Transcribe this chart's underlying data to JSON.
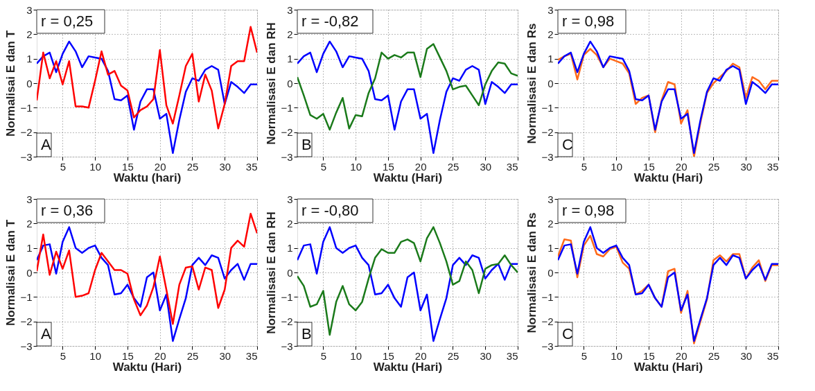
{
  "chart_data": [
    {
      "type": "line",
      "xlabel": "Waktu (hari)",
      "ylabel": "Normalisai E dan T",
      "annotations": [
        "r = 0,25",
        "A"
      ],
      "xlim": [
        1,
        35
      ],
      "xticks": [
        5,
        10,
        15,
        20,
        25,
        30,
        35
      ],
      "ylim": [
        -3,
        3
      ],
      "yticks": [
        -3,
        -2,
        -1,
        0,
        1,
        2,
        3
      ],
      "grid": true,
      "line_style": "solid",
      "x": [
        1,
        2,
        3,
        4,
        5,
        6,
        7,
        8,
        9,
        10,
        11,
        12,
        13,
        14,
        15,
        16,
        17,
        18,
        19,
        20,
        21,
        22,
        23,
        24,
        25,
        26,
        27,
        28,
        29,
        30,
        31,
        32,
        33,
        34,
        35
      ],
      "series": [
        {
          "color": "#0000ff",
          "values": [
            0.8,
            1.1,
            1.25,
            0.45,
            1.2,
            1.7,
            1.3,
            0.65,
            1.1,
            1.05,
            1.0,
            0.5,
            -0.65,
            -0.7,
            -0.5,
            -1.9,
            -0.75,
            -0.25,
            -0.25,
            -1.45,
            -1.25,
            -2.85,
            -1.5,
            -0.35,
            0.2,
            0.1,
            0.55,
            0.7,
            0.55,
            -0.85,
            0.05,
            -0.15,
            -0.4,
            -0.05,
            -0.05
          ]
        },
        {
          "color": "#ff0000",
          "values": [
            -0.7,
            1.25,
            0.2,
            0.9,
            -0.05,
            0.9,
            -0.95,
            -0.95,
            -1.0,
            0.1,
            1.3,
            0.35,
            0.5,
            -0.1,
            -0.3,
            -1.4,
            -1.1,
            -0.95,
            -0.65,
            1.35,
            -0.9,
            -1.65,
            -0.5,
            0.7,
            1.2,
            -0.75,
            0.35,
            -0.3,
            -1.85,
            -0.85,
            0.7,
            0.9,
            0.9,
            2.3,
            1.25
          ]
        }
      ]
    },
    {
      "type": "line",
      "xlabel": "Waktu (Hari)",
      "ylabel": "Normalisasi E dan RH",
      "annotations": [
        "r = -0,82",
        "B"
      ],
      "xlim": [
        1,
        35
      ],
      "xticks": [
        5,
        10,
        15,
        20,
        25,
        30,
        35
      ],
      "ylim": [
        -3,
        3
      ],
      "yticks": [
        -3,
        -2,
        -1,
        0,
        1,
        2,
        3
      ],
      "grid": true,
      "line_style": "solid",
      "x": [
        1,
        2,
        3,
        4,
        5,
        6,
        7,
        8,
        9,
        10,
        11,
        12,
        13,
        14,
        15,
        16,
        17,
        18,
        19,
        20,
        21,
        22,
        23,
        24,
        25,
        26,
        27,
        28,
        29,
        30,
        31,
        32,
        33,
        34,
        35
      ],
      "series": [
        {
          "color": "#0000ff",
          "values": [
            0.8,
            1.1,
            1.25,
            0.45,
            1.2,
            1.7,
            1.3,
            0.65,
            1.1,
            1.05,
            1.0,
            0.5,
            -0.65,
            -0.7,
            -0.5,
            -1.9,
            -0.75,
            -0.25,
            -0.25,
            -1.45,
            -1.25,
            -2.85,
            -1.5,
            -0.35,
            0.2,
            0.1,
            0.55,
            0.7,
            0.55,
            -0.85,
            0.05,
            -0.15,
            -0.4,
            -0.05,
            -0.05
          ]
        },
        {
          "color": "#1a7a1a",
          "values": [
            0.25,
            -0.5,
            -1.3,
            -1.45,
            -1.25,
            -1.9,
            -1.2,
            -0.6,
            -1.85,
            -1.3,
            -1.35,
            -0.4,
            0.2,
            1.25,
            1.0,
            1.15,
            1.05,
            1.25,
            1.25,
            0.25,
            1.4,
            1.6,
            1.05,
            0.5,
            -0.25,
            -0.15,
            -0.1,
            -0.5,
            -0.9,
            -0.05,
            0.5,
            0.85,
            0.8,
            0.4,
            0.3
          ]
        }
      ]
    },
    {
      "type": "line",
      "xlabel": "Waktu (Hari)",
      "ylabel": "Normalisasi E dan Rs",
      "annotations": [
        "r = 0,98",
        "C"
      ],
      "xlim": [
        1,
        35
      ],
      "xticks": [
        5,
        10,
        15,
        20,
        25,
        30,
        35
      ],
      "ylim": [
        -3,
        3
      ],
      "yticks": [
        -3,
        -2,
        -1,
        0,
        1,
        2,
        3
      ],
      "grid": true,
      "line_style": "solid",
      "x": [
        1,
        2,
        3,
        4,
        5,
        6,
        7,
        8,
        9,
        10,
        11,
        12,
        13,
        14,
        15,
        16,
        17,
        18,
        19,
        20,
        21,
        22,
        23,
        24,
        25,
        26,
        27,
        28,
        29,
        30,
        31,
        32,
        33,
        34,
        35
      ],
      "series": [
        {
          "color": "#ff6a1a",
          "values": [
            0.95,
            1.1,
            1.2,
            0.15,
            1.15,
            1.4,
            1.15,
            0.65,
            1.0,
            0.9,
            0.8,
            0.4,
            -0.85,
            -0.6,
            -0.5,
            -2.0,
            -0.7,
            0.05,
            -0.05,
            -1.65,
            -1.1,
            -3.0,
            -1.6,
            -0.4,
            0.0,
            0.25,
            0.5,
            0.8,
            0.65,
            -0.6,
            0.25,
            0.1,
            -0.25,
            0.1,
            0.1
          ]
        },
        {
          "color": "#0000ff",
          "values": [
            0.8,
            1.1,
            1.25,
            0.45,
            1.2,
            1.7,
            1.3,
            0.65,
            1.1,
            1.05,
            1.0,
            0.5,
            -0.65,
            -0.7,
            -0.5,
            -1.9,
            -0.75,
            -0.25,
            -0.25,
            -1.45,
            -1.25,
            -2.85,
            -1.5,
            -0.35,
            0.2,
            0.1,
            0.55,
            0.7,
            0.55,
            -0.85,
            0.05,
            -0.15,
            -0.4,
            -0.05,
            -0.05
          ]
        }
      ]
    },
    {
      "type": "line",
      "xlabel": "Waktu (Hari)",
      "ylabel": "Normalisai E dan T",
      "annotations": [
        "r = 0,36",
        "A"
      ],
      "xlim": [
        1,
        35
      ],
      "xticks": [
        5,
        10,
        15,
        20,
        25,
        30,
        35
      ],
      "ylim": [
        -3,
        3
      ],
      "yticks": [
        -3,
        -2,
        -1,
        0,
        1,
        2,
        3
      ],
      "grid": true,
      "line_style": "solid",
      "x": [
        1,
        2,
        3,
        4,
        5,
        6,
        7,
        8,
        9,
        10,
        11,
        12,
        13,
        14,
        15,
        16,
        17,
        18,
        19,
        20,
        21,
        22,
        23,
        24,
        25,
        26,
        27,
        28,
        29,
        30,
        31,
        32,
        33,
        34,
        35
      ],
      "series": [
        {
          "color": "#0000ff",
          "values": [
            0.5,
            1.1,
            1.15,
            -0.05,
            1.25,
            1.85,
            1.0,
            0.8,
            1.0,
            1.1,
            0.6,
            0.3,
            -0.9,
            -0.85,
            -0.5,
            -1.05,
            -1.4,
            -0.2,
            0.0,
            -1.55,
            -0.9,
            -2.8,
            -1.9,
            -1.05,
            0.3,
            0.6,
            0.3,
            0.7,
            0.6,
            -0.25,
            0.1,
            0.35,
            -0.3,
            0.35,
            0.35
          ]
        },
        {
          "color": "#ff0000",
          "values": [
            0.05,
            1.55,
            -0.1,
            0.85,
            0.15,
            0.9,
            -1.0,
            -0.95,
            -0.85,
            0.1,
            0.8,
            0.45,
            0.1,
            0.1,
            -0.05,
            -1.1,
            -1.75,
            -1.35,
            -0.6,
            0.65,
            -0.7,
            -2.1,
            -0.5,
            0.2,
            0.25,
            -0.7,
            0.2,
            0.1,
            -1.45,
            -0.7,
            1.0,
            1.3,
            1.05,
            2.4,
            1.6
          ]
        }
      ]
    },
    {
      "type": "line",
      "xlabel": "Waktu (Hari)",
      "ylabel": "Normalisasi E dan RH",
      "annotations": [
        "r = -0,80",
        "B"
      ],
      "xlim": [
        1,
        35
      ],
      "xticks": [
        5,
        10,
        15,
        20,
        25,
        30,
        35
      ],
      "ylim": [
        -3,
        3
      ],
      "yticks": [
        -3,
        -2,
        -1,
        0,
        1,
        2,
        3
      ],
      "grid": true,
      "line_style": "solid",
      "x": [
        1,
        2,
        3,
        4,
        5,
        6,
        7,
        8,
        9,
        10,
        11,
        12,
        13,
        14,
        15,
        16,
        17,
        18,
        19,
        20,
        21,
        22,
        23,
        24,
        25,
        26,
        27,
        28,
        29,
        30,
        31,
        32,
        33,
        34,
        35
      ],
      "series": [
        {
          "color": "#0000ff",
          "values": [
            0.5,
            1.1,
            1.15,
            -0.05,
            1.25,
            1.85,
            1.0,
            0.8,
            1.0,
            1.1,
            0.6,
            0.3,
            -0.9,
            -0.85,
            -0.5,
            -1.05,
            -1.4,
            -0.2,
            0.0,
            -1.55,
            -0.9,
            -2.8,
            -1.9,
            -1.05,
            0.3,
            0.6,
            0.3,
            0.7,
            0.6,
            -0.25,
            0.1,
            0.35,
            -0.3,
            0.35,
            0.35
          ]
        },
        {
          "color": "#1a7a1a",
          "values": [
            -0.15,
            -0.55,
            -1.4,
            -1.3,
            -0.75,
            -2.55,
            -1.2,
            -0.55,
            -1.3,
            -1.55,
            -1.2,
            -0.25,
            0.6,
            0.95,
            0.8,
            0.8,
            1.25,
            1.35,
            1.2,
            0.45,
            1.4,
            1.85,
            1.2,
            0.45,
            -0.5,
            -0.35,
            0.45,
            0.1,
            -0.85,
            0.15,
            0.3,
            0.35,
            0.7,
            0.3,
            0.0
          ]
        }
      ]
    },
    {
      "type": "line",
      "xlabel": "Waktu (Hari)",
      "ylabel": "Normalisasi E dan Rs",
      "annotations": [
        "r = 0,98",
        "C"
      ],
      "xlim": [
        1,
        35
      ],
      "xticks": [
        5,
        10,
        15,
        20,
        25,
        30,
        35
      ],
      "ylim": [
        -3,
        3
      ],
      "yticks": [
        -3,
        -2,
        -1,
        0,
        1,
        2,
        3
      ],
      "grid": true,
      "line_style": "solid",
      "x": [
        1,
        2,
        3,
        4,
        5,
        6,
        7,
        8,
        9,
        10,
        11,
        12,
        13,
        14,
        15,
        16,
        17,
        18,
        19,
        20,
        21,
        22,
        23,
        24,
        25,
        26,
        27,
        28,
        29,
        30,
        31,
        32,
        33,
        34,
        35
      ],
      "series": [
        {
          "color": "#ff6a1a",
          "values": [
            0.65,
            1.35,
            1.3,
            -0.2,
            1.1,
            1.5,
            0.75,
            0.65,
            0.95,
            1.05,
            0.4,
            0.15,
            -0.9,
            -0.75,
            -0.5,
            -1.05,
            -1.4,
            0.05,
            0.15,
            -1.65,
            -0.75,
            -2.9,
            -2.0,
            -1.1,
            0.5,
            0.7,
            0.45,
            0.75,
            0.75,
            -0.25,
            0.2,
            0.5,
            -0.35,
            0.3,
            0.3
          ]
        },
        {
          "color": "#0000ff",
          "values": [
            0.5,
            1.1,
            1.15,
            -0.05,
            1.25,
            1.85,
            1.0,
            0.8,
            1.0,
            1.1,
            0.6,
            0.3,
            -0.9,
            -0.85,
            -0.5,
            -1.05,
            -1.4,
            -0.2,
            0.0,
            -1.55,
            -0.9,
            -2.8,
            -1.9,
            -1.05,
            0.3,
            0.6,
            0.3,
            0.7,
            0.6,
            -0.25,
            0.1,
            0.35,
            -0.3,
            0.35,
            0.35
          ]
        }
      ]
    }
  ]
}
